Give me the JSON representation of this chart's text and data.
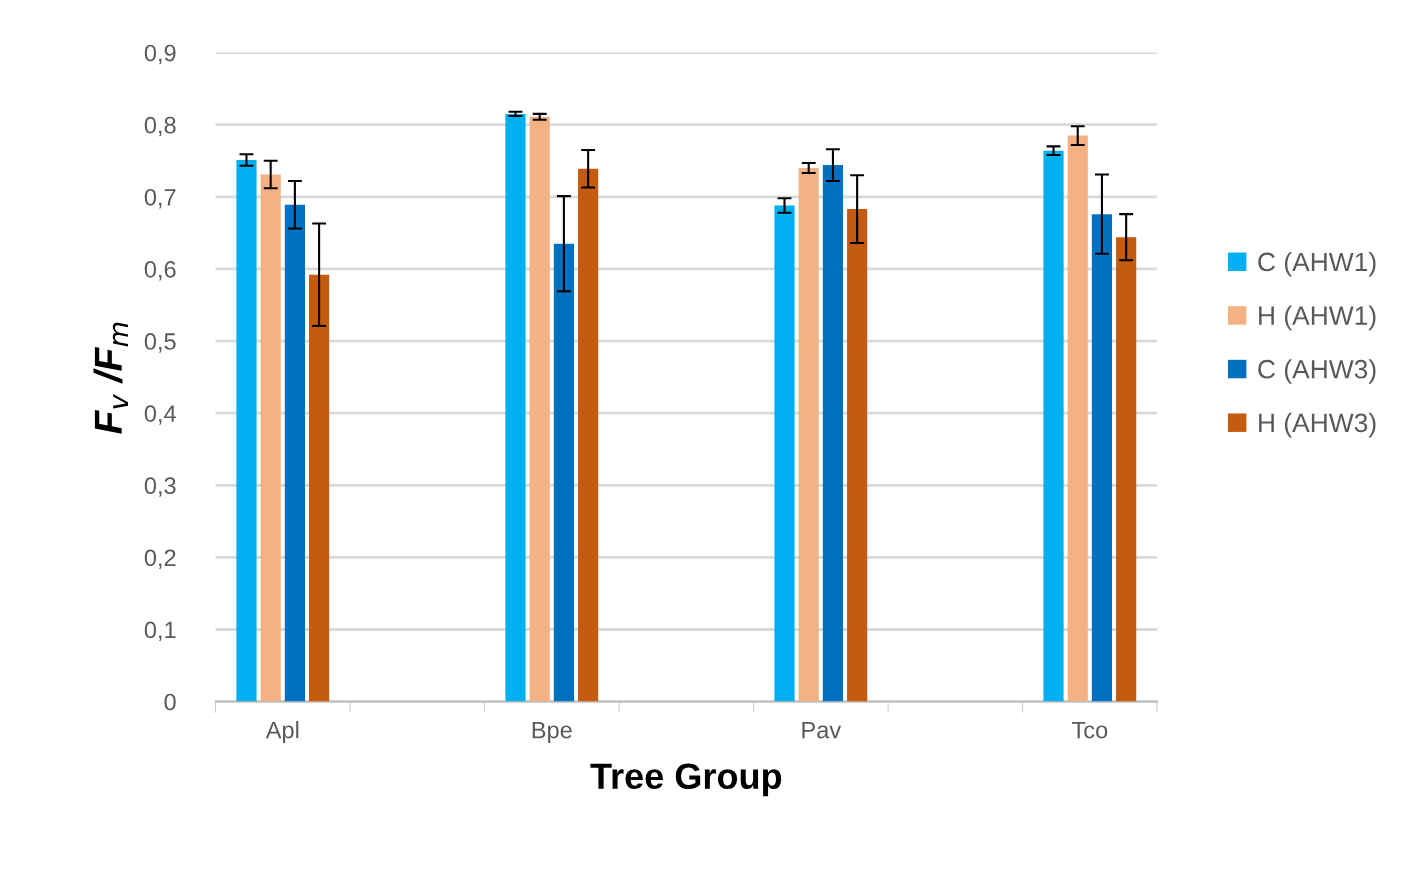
{
  "chart_data": {
    "type": "bar",
    "xlabel": "Tree Group",
    "ylabel": "F$_{v}$ /F$_{m}$",
    "categories": [
      "Apl",
      null,
      "Bpe",
      null,
      "Pav",
      null,
      "Tco"
    ],
    "series": [
      {
        "name": "C (AHW1)",
        "color": "#00b0f0",
        "values": [
          0.751,
          null,
          0.815,
          null,
          0.688,
          null,
          0.764
        ],
        "errors": [
          0.008,
          null,
          0.003,
          null,
          0.01,
          null,
          0.006
        ]
      },
      {
        "name": "H (AHW1)",
        "color": "#f4b183",
        "values": [
          0.731,
          null,
          0.811,
          null,
          0.74,
          null,
          0.785
        ],
        "errors": [
          0.019,
          null,
          0.004,
          null,
          0.007,
          null,
          0.013
        ]
      },
      {
        "name": "C (AHW3)",
        "color": "#0070c0",
        "values": [
          0.689,
          null,
          0.635,
          null,
          0.744,
          null,
          0.676
        ],
        "errors": [
          0.033,
          null,
          0.066,
          null,
          0.022,
          null,
          0.055
        ]
      },
      {
        "name": "H (AHW3)",
        "color": "#c55a11",
        "values": [
          0.592,
          null,
          0.739,
          null,
          0.683,
          null,
          0.644
        ],
        "errors": [
          0.071,
          null,
          0.026,
          null,
          0.047,
          null,
          0.032
        ]
      }
    ],
    "ylim": [
      0,
      0.9
    ],
    "yticks": [
      0,
      {
        "value": 0.1,
        "label": "0,1"
      },
      {
        "value": 0.2,
        "label": "0,2"
      },
      {
        "value": 0.3,
        "label": "0,3"
      },
      {
        "value": 0.4,
        "label": "0,4"
      },
      {
        "value": 0.5,
        "label": "0,5"
      },
      {
        "value": 0.6,
        "label": "0,6"
      },
      {
        "value": 0.7,
        "label": "0,7"
      },
      {
        "value": 0.8,
        "label": "0,8"
      },
      {
        "value": 0.9,
        "label": "0,9"
      }
    ],
    "grid": "y",
    "legend": "right"
  }
}
